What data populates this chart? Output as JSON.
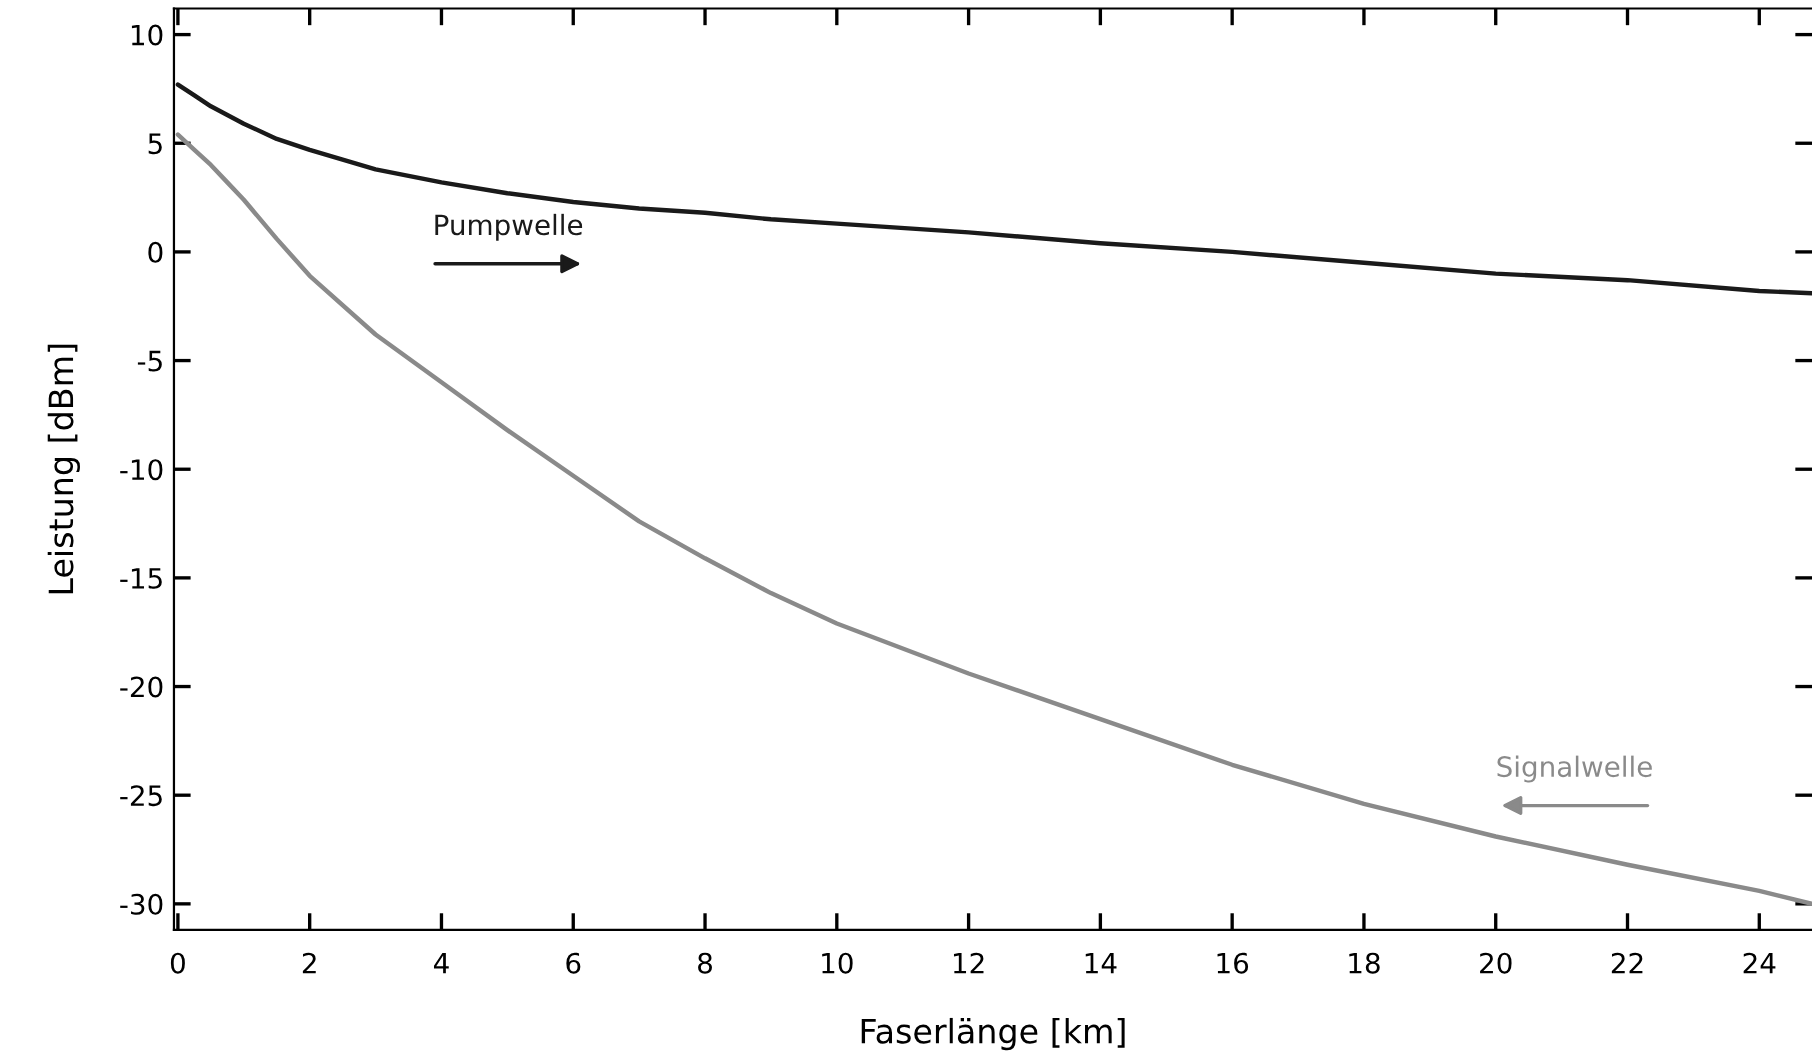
{
  "chart_data": {
    "type": "line",
    "xlabel": "Faserlänge [km]",
    "ylabel": "Leistung [dBm]",
    "xlim": [
      -0.06,
      24.8
    ],
    "xticks": [
      0,
      2,
      4,
      6,
      8,
      10,
      12,
      14,
      16,
      18,
      20,
      22,
      24
    ],
    "ylim": [
      -31.2,
      11.2
    ],
    "yticks": [
      -30,
      -25,
      -20,
      -15,
      -10,
      -5,
      0,
      5,
      10
    ],
    "grid": false,
    "marker": "none",
    "line_style": "solid",
    "series": [
      {
        "color": "#1a1a1a",
        "x": [
          0,
          0.25,
          0.5,
          0.75,
          1,
          1.5,
          2,
          3,
          4,
          5,
          6,
          7,
          8,
          9,
          10,
          12,
          14,
          16,
          18,
          20,
          22,
          24,
          24.8
        ],
        "values": [
          7.7,
          7.2,
          6.7,
          6.3,
          5.9,
          5.2,
          4.7,
          3.8,
          3.2,
          2.7,
          2.3,
          2.0,
          1.8,
          1.5,
          1.3,
          0.9,
          0.4,
          0,
          -0.5,
          -1.0,
          -1.3,
          -1.8,
          -1.9
        ]
      },
      {
        "color": "#8a8a8a",
        "x": [
          0,
          0.25,
          0.5,
          0.75,
          1,
          1.5,
          2,
          3,
          4,
          5,
          6,
          7,
          8,
          9,
          10,
          12,
          14,
          16,
          18,
          20,
          22,
          24,
          24.8
        ],
        "values": [
          5.4,
          4.7,
          4.0,
          3.2,
          2.4,
          0.6,
          -1.1,
          -3.8,
          -6.0,
          -8.2,
          -10.3,
          -12.4,
          -14.1,
          -15.7,
          -17.1,
          -19.4,
          -21.5,
          -23.6,
          -25.4,
          -26.9,
          -28.2,
          -29.4,
          -30.0
        ]
      }
    ],
    "annotations": [
      "Pumpwelle",
      "Signalwelle"
    ]
  }
}
